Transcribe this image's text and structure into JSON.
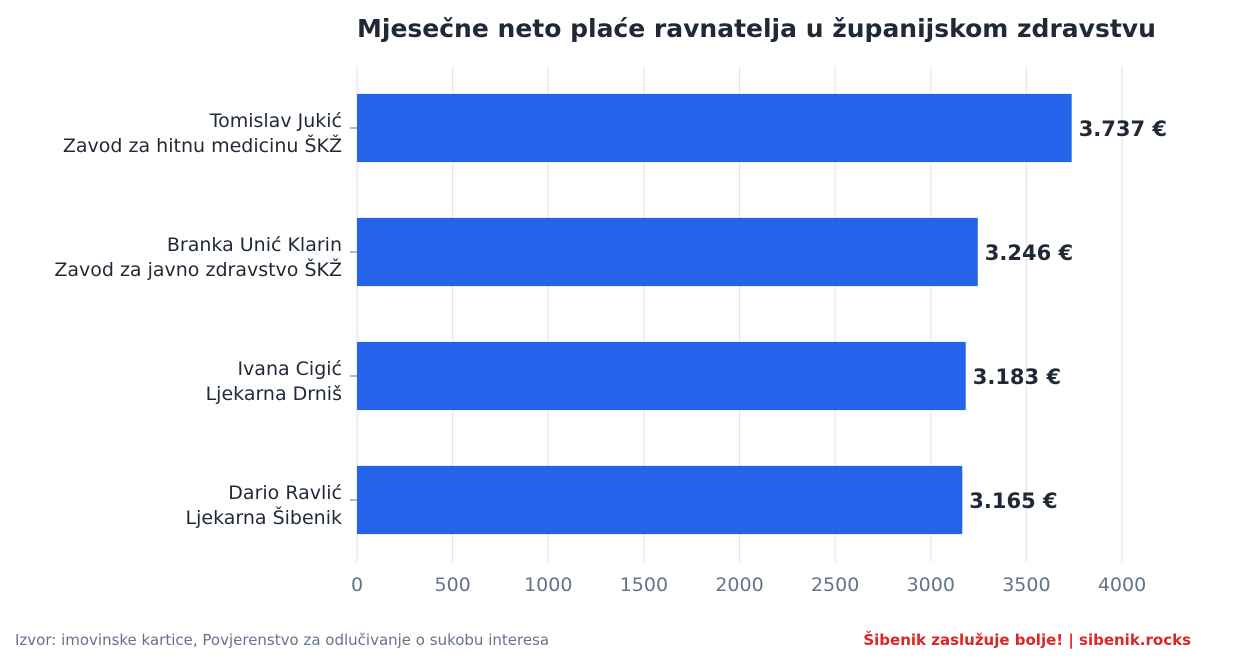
{
  "chart_data": {
    "type": "bar",
    "orientation": "horizontal",
    "title": "Mjesečne neto plaće ravnatelja u županijskom zdravstvu",
    "xlabel": "",
    "ylabel": "",
    "xlim": [
      0,
      4000
    ],
    "xticks": [
      0,
      500,
      1000,
      1500,
      2000,
      2500,
      3000,
      3500,
      4000
    ],
    "grid": "vertical",
    "categories": [
      {
        "name": "Tomislav Jukić",
        "org": "Zavod za hitnu medicinu ŠKŽ"
      },
      {
        "name": "Branka Unić Klarin",
        "org": "Zavod za javno zdravstvo ŠKŽ"
      },
      {
        "name": "Ivana Cigić",
        "org": "Ljekarna Drniš"
      },
      {
        "name": "Dario Ravlić",
        "org": "Ljekarna Šibenik"
      }
    ],
    "values": [
      3737,
      3246,
      3183,
      3165
    ],
    "value_labels": [
      "3.737 €",
      "3.246 €",
      "3.183 €",
      "3.165 €"
    ],
    "bar_color": "#2563eb"
  },
  "footer": {
    "source": "Izvor: imovinske kartice, Povjerenstvo za odlučivanje o sukobu interesa",
    "brand": "Šibenik zaslužuje bolje!  |  sibenik.rocks",
    "brand_color": "#dc2626"
  }
}
